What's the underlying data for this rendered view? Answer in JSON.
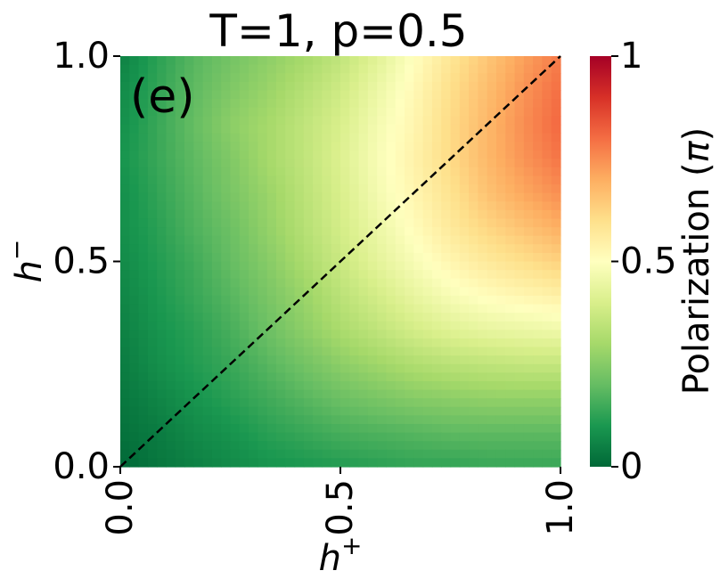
{
  "chart_data": {
    "type": "heatmap",
    "title": "T=1, p=0.5",
    "panel_label": "(e)",
    "xlabel": "h",
    "xlabel_sup": "+",
    "ylabel": "h",
    "ylabel_sup": "−",
    "xlim": [
      0.0,
      1.0
    ],
    "ylim": [
      0.0,
      1.0
    ],
    "xticks": [
      0.0,
      0.5,
      1.0
    ],
    "xtick_labels": [
      "0.0",
      "0.5",
      "1.0"
    ],
    "yticks": [
      0.0,
      0.5,
      1.0
    ],
    "ytick_labels": [
      "0.0",
      "0.5",
      "1.0"
    ],
    "colormap": "RdYlGn_r",
    "colorbar": {
      "label": "Polarization (",
      "label_symbol": "π",
      "label_close": ")",
      "range": [
        0,
        1
      ],
      "ticks": [
        0,
        0.5,
        1
      ],
      "tick_labels": [
        "0",
        "0.5",
        "1"
      ]
    },
    "reference_line": {
      "style": "dashed",
      "color": "#000000",
      "from": [
        0,
        0
      ],
      "to": [
        1,
        1
      ]
    },
    "grid": [
      [
        0.05,
        0.12,
        0.18,
        0.22,
        0.26,
        0.3,
        0.35,
        0.42,
        0.5,
        0.58,
        0.65,
        0.72,
        0.78
      ],
      [
        0.07,
        0.13,
        0.19,
        0.24,
        0.28,
        0.33,
        0.38,
        0.45,
        0.52,
        0.6,
        0.67,
        0.74,
        0.8
      ],
      [
        0.08,
        0.14,
        0.2,
        0.26,
        0.3,
        0.35,
        0.4,
        0.47,
        0.53,
        0.61,
        0.68,
        0.75,
        0.81
      ],
      [
        0.09,
        0.14,
        0.19,
        0.24,
        0.3,
        0.35,
        0.41,
        0.48,
        0.54,
        0.61,
        0.68,
        0.74,
        0.79
      ],
      [
        0.08,
        0.13,
        0.18,
        0.23,
        0.28,
        0.34,
        0.4,
        0.47,
        0.53,
        0.59,
        0.66,
        0.71,
        0.75
      ],
      [
        0.08,
        0.12,
        0.17,
        0.21,
        0.27,
        0.33,
        0.39,
        0.45,
        0.51,
        0.57,
        0.62,
        0.66,
        0.7
      ],
      [
        0.07,
        0.11,
        0.15,
        0.2,
        0.25,
        0.31,
        0.37,
        0.43,
        0.48,
        0.53,
        0.57,
        0.6,
        0.63
      ],
      [
        0.06,
        0.1,
        0.14,
        0.18,
        0.23,
        0.28,
        0.34,
        0.39,
        0.44,
        0.48,
        0.51,
        0.53,
        0.55
      ],
      [
        0.05,
        0.09,
        0.12,
        0.16,
        0.21,
        0.26,
        0.31,
        0.35,
        0.39,
        0.42,
        0.44,
        0.45,
        0.46
      ],
      [
        0.04,
        0.08,
        0.11,
        0.14,
        0.18,
        0.22,
        0.26,
        0.29,
        0.32,
        0.34,
        0.35,
        0.36,
        0.36
      ],
      [
        0.03,
        0.06,
        0.09,
        0.12,
        0.15,
        0.18,
        0.21,
        0.23,
        0.25,
        0.26,
        0.27,
        0.27,
        0.27
      ],
      [
        0.02,
        0.04,
        0.07,
        0.09,
        0.12,
        0.14,
        0.16,
        0.17,
        0.18,
        0.19,
        0.19,
        0.19,
        0.19
      ],
      [
        0.0,
        0.03,
        0.05,
        0.07,
        0.09,
        0.1,
        0.11,
        0.12,
        0.13,
        0.13,
        0.14,
        0.14,
        0.14
      ]
    ]
  }
}
